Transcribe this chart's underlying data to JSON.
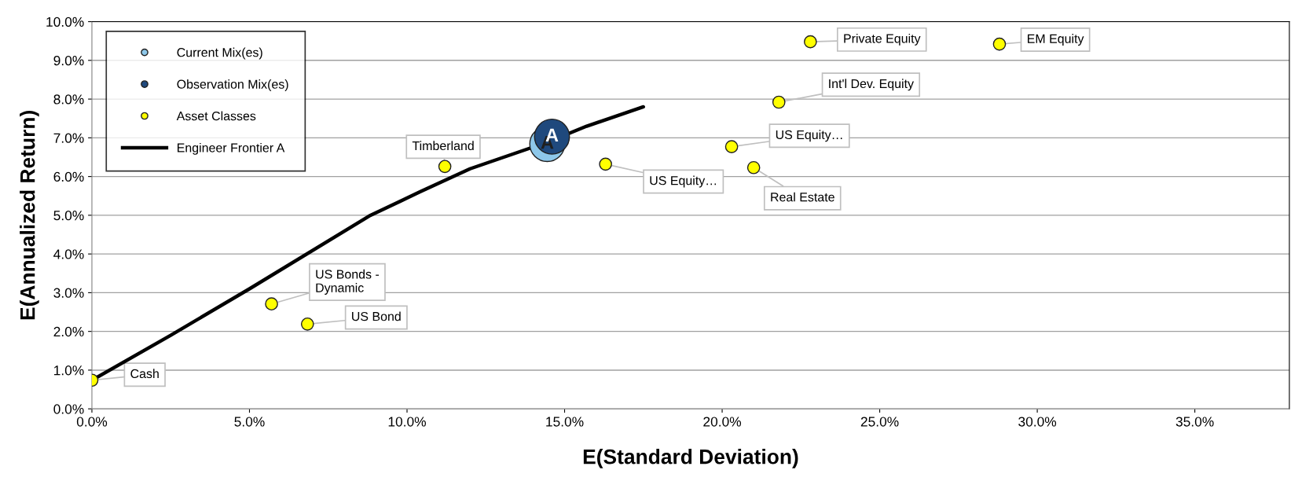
{
  "chart_data": {
    "type": "scatter",
    "xlabel": "E(Standard Deviation)",
    "ylabel": "E(Annualized Return)",
    "xlim": [
      0,
      38
    ],
    "ylim": [
      0,
      10
    ],
    "xticks": [
      {
        "value": 0,
        "label": "0.0%"
      },
      {
        "value": 5,
        "label": "5.0%"
      },
      {
        "value": 10,
        "label": "10.0%"
      },
      {
        "value": 15,
        "label": "15.0%"
      },
      {
        "value": 20,
        "label": "20.0%"
      },
      {
        "value": 25,
        "label": "25.0%"
      },
      {
        "value": 30,
        "label": "30.0%"
      },
      {
        "value": 35,
        "label": "35.0%"
      }
    ],
    "yticks": [
      {
        "value": 0,
        "label": "0.0%"
      },
      {
        "value": 1,
        "label": "1.0%"
      },
      {
        "value": 2,
        "label": "2.0%"
      },
      {
        "value": 3,
        "label": "3.0%"
      },
      {
        "value": 4,
        "label": "4.0%"
      },
      {
        "value": 5,
        "label": "5.0%"
      },
      {
        "value": 6,
        "label": "6.0%"
      },
      {
        "value": 7,
        "label": "7.0%"
      },
      {
        "value": 8,
        "label": "8.0%"
      },
      {
        "value": 9,
        "label": "9.0%"
      },
      {
        "value": 10,
        "label": "10.0%"
      }
    ],
    "grid": "y",
    "legend": "top left",
    "marker": "circle",
    "series": [
      {
        "name": "Current Mix(es)",
        "color": "#8ec8ea",
        "x": [
          14.45
        ],
        "values": [
          6.84
        ]
      },
      {
        "name": "Observation Mix(es)",
        "color": "#1f497d",
        "x": [
          14.6
        ],
        "values": [
          7.03
        ]
      },
      {
        "name": "Asset Classes",
        "color": "#ffff00",
        "x": [
          0,
          5.7,
          6.84,
          11.2,
          16.3,
          20.3,
          21.0,
          21.8,
          22.8,
          28.8
        ],
        "values": [
          0.74,
          2.71,
          2.19,
          6.26,
          6.32,
          6.77,
          6.23,
          7.92,
          9.48,
          9.42
        ]
      },
      {
        "name": "Engineer Frontier A",
        "type": "line",
        "color": "#000000",
        "marker": "none",
        "x": [
          0,
          2.5,
          5,
          8.8,
          10.4,
          12,
          14.5,
          15.7,
          17.5
        ],
        "values": [
          0.74,
          1.9,
          3.1,
          4.98,
          5.6,
          6.2,
          6.9,
          7.3,
          7.8
        ]
      }
    ],
    "annotations": [
      {
        "text": "A",
        "x": 14.45,
        "y": 6.84
      },
      {
        "text": "A",
        "x": 14.6,
        "y": 7.03
      },
      {
        "text": "Cash",
        "x": 0,
        "y": 0.74
      },
      {
        "text": "US Bonds -\nDynamic",
        "x": 5.7,
        "y": 2.71
      },
      {
        "text": "US Bond",
        "x": 6.84,
        "y": 2.19
      },
      {
        "text": "Timberland",
        "x": 11.2,
        "y": 6.26
      },
      {
        "text": "US Equity…",
        "x": 16.3,
        "y": 6.32
      },
      {
        "text": "US Equity…",
        "x": 20.3,
        "y": 6.77
      },
      {
        "text": "Real Estate",
        "x": 21.0,
        "y": 6.23
      },
      {
        "text": "Int'l Dev. Equity",
        "x": 21.8,
        "y": 7.92
      },
      {
        "text": "Private Equity",
        "x": 22.8,
        "y": 9.48
      },
      {
        "text": "EM Equity",
        "x": 28.8,
        "y": 9.42
      }
    ]
  }
}
